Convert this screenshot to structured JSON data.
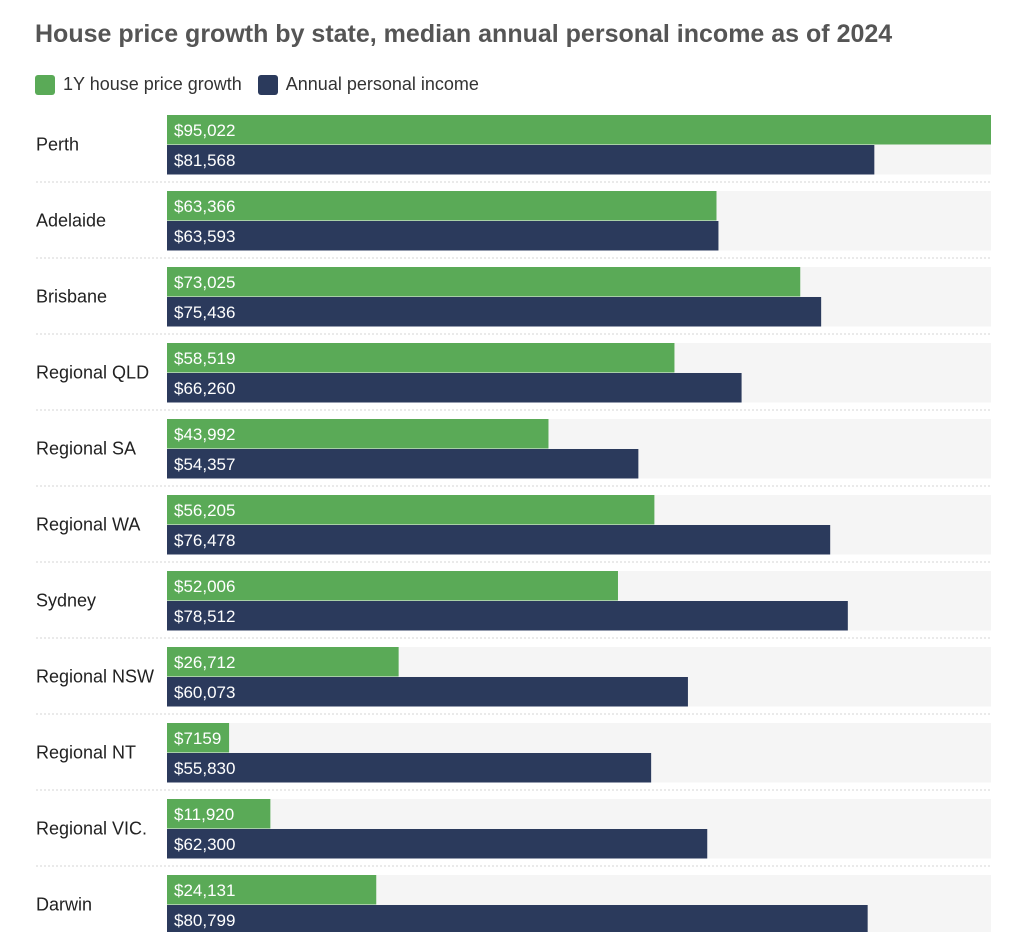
{
  "chart_data": {
    "type": "bar",
    "orientation": "horizontal",
    "title": "House price growth by state, median annual personal income as of 2024",
    "categories": [
      "Perth",
      "Adelaide",
      "Brisbane",
      "Regional QLD",
      "Regional SA",
      "Regional WA",
      "Sydney",
      "Regional NSW",
      "Regional NT",
      "Regional VIC.",
      "Darwin"
    ],
    "series": [
      {
        "name": "1Y house price growth",
        "color": "#5aaa57",
        "values": [
          95022,
          63366,
          73025,
          58519,
          43992,
          56205,
          52006,
          26712,
          7159,
          11920,
          24131
        ],
        "labels": [
          "$95,022",
          "$63,366",
          "$73,025",
          "$58,519",
          "$43,992",
          "$56,205",
          "$52,006",
          "$26,712",
          "$7159",
          "$11,920",
          "$24,131"
        ]
      },
      {
        "name": "Annual personal income",
        "color": "#2b3a5c",
        "values": [
          81568,
          63593,
          75436,
          66260,
          54357,
          76478,
          78512,
          60073,
          55830,
          62300,
          80799
        ],
        "labels": [
          "$81,568",
          "$63,593",
          "$75,436",
          "$66,260",
          "$54,357",
          "$76,478",
          "$78,512",
          "$60,073",
          "$55,830",
          "$62,300",
          "$80,799"
        ]
      }
    ],
    "xlim": [
      0,
      95022
    ],
    "legend_position": "top-left",
    "grid": false
  }
}
